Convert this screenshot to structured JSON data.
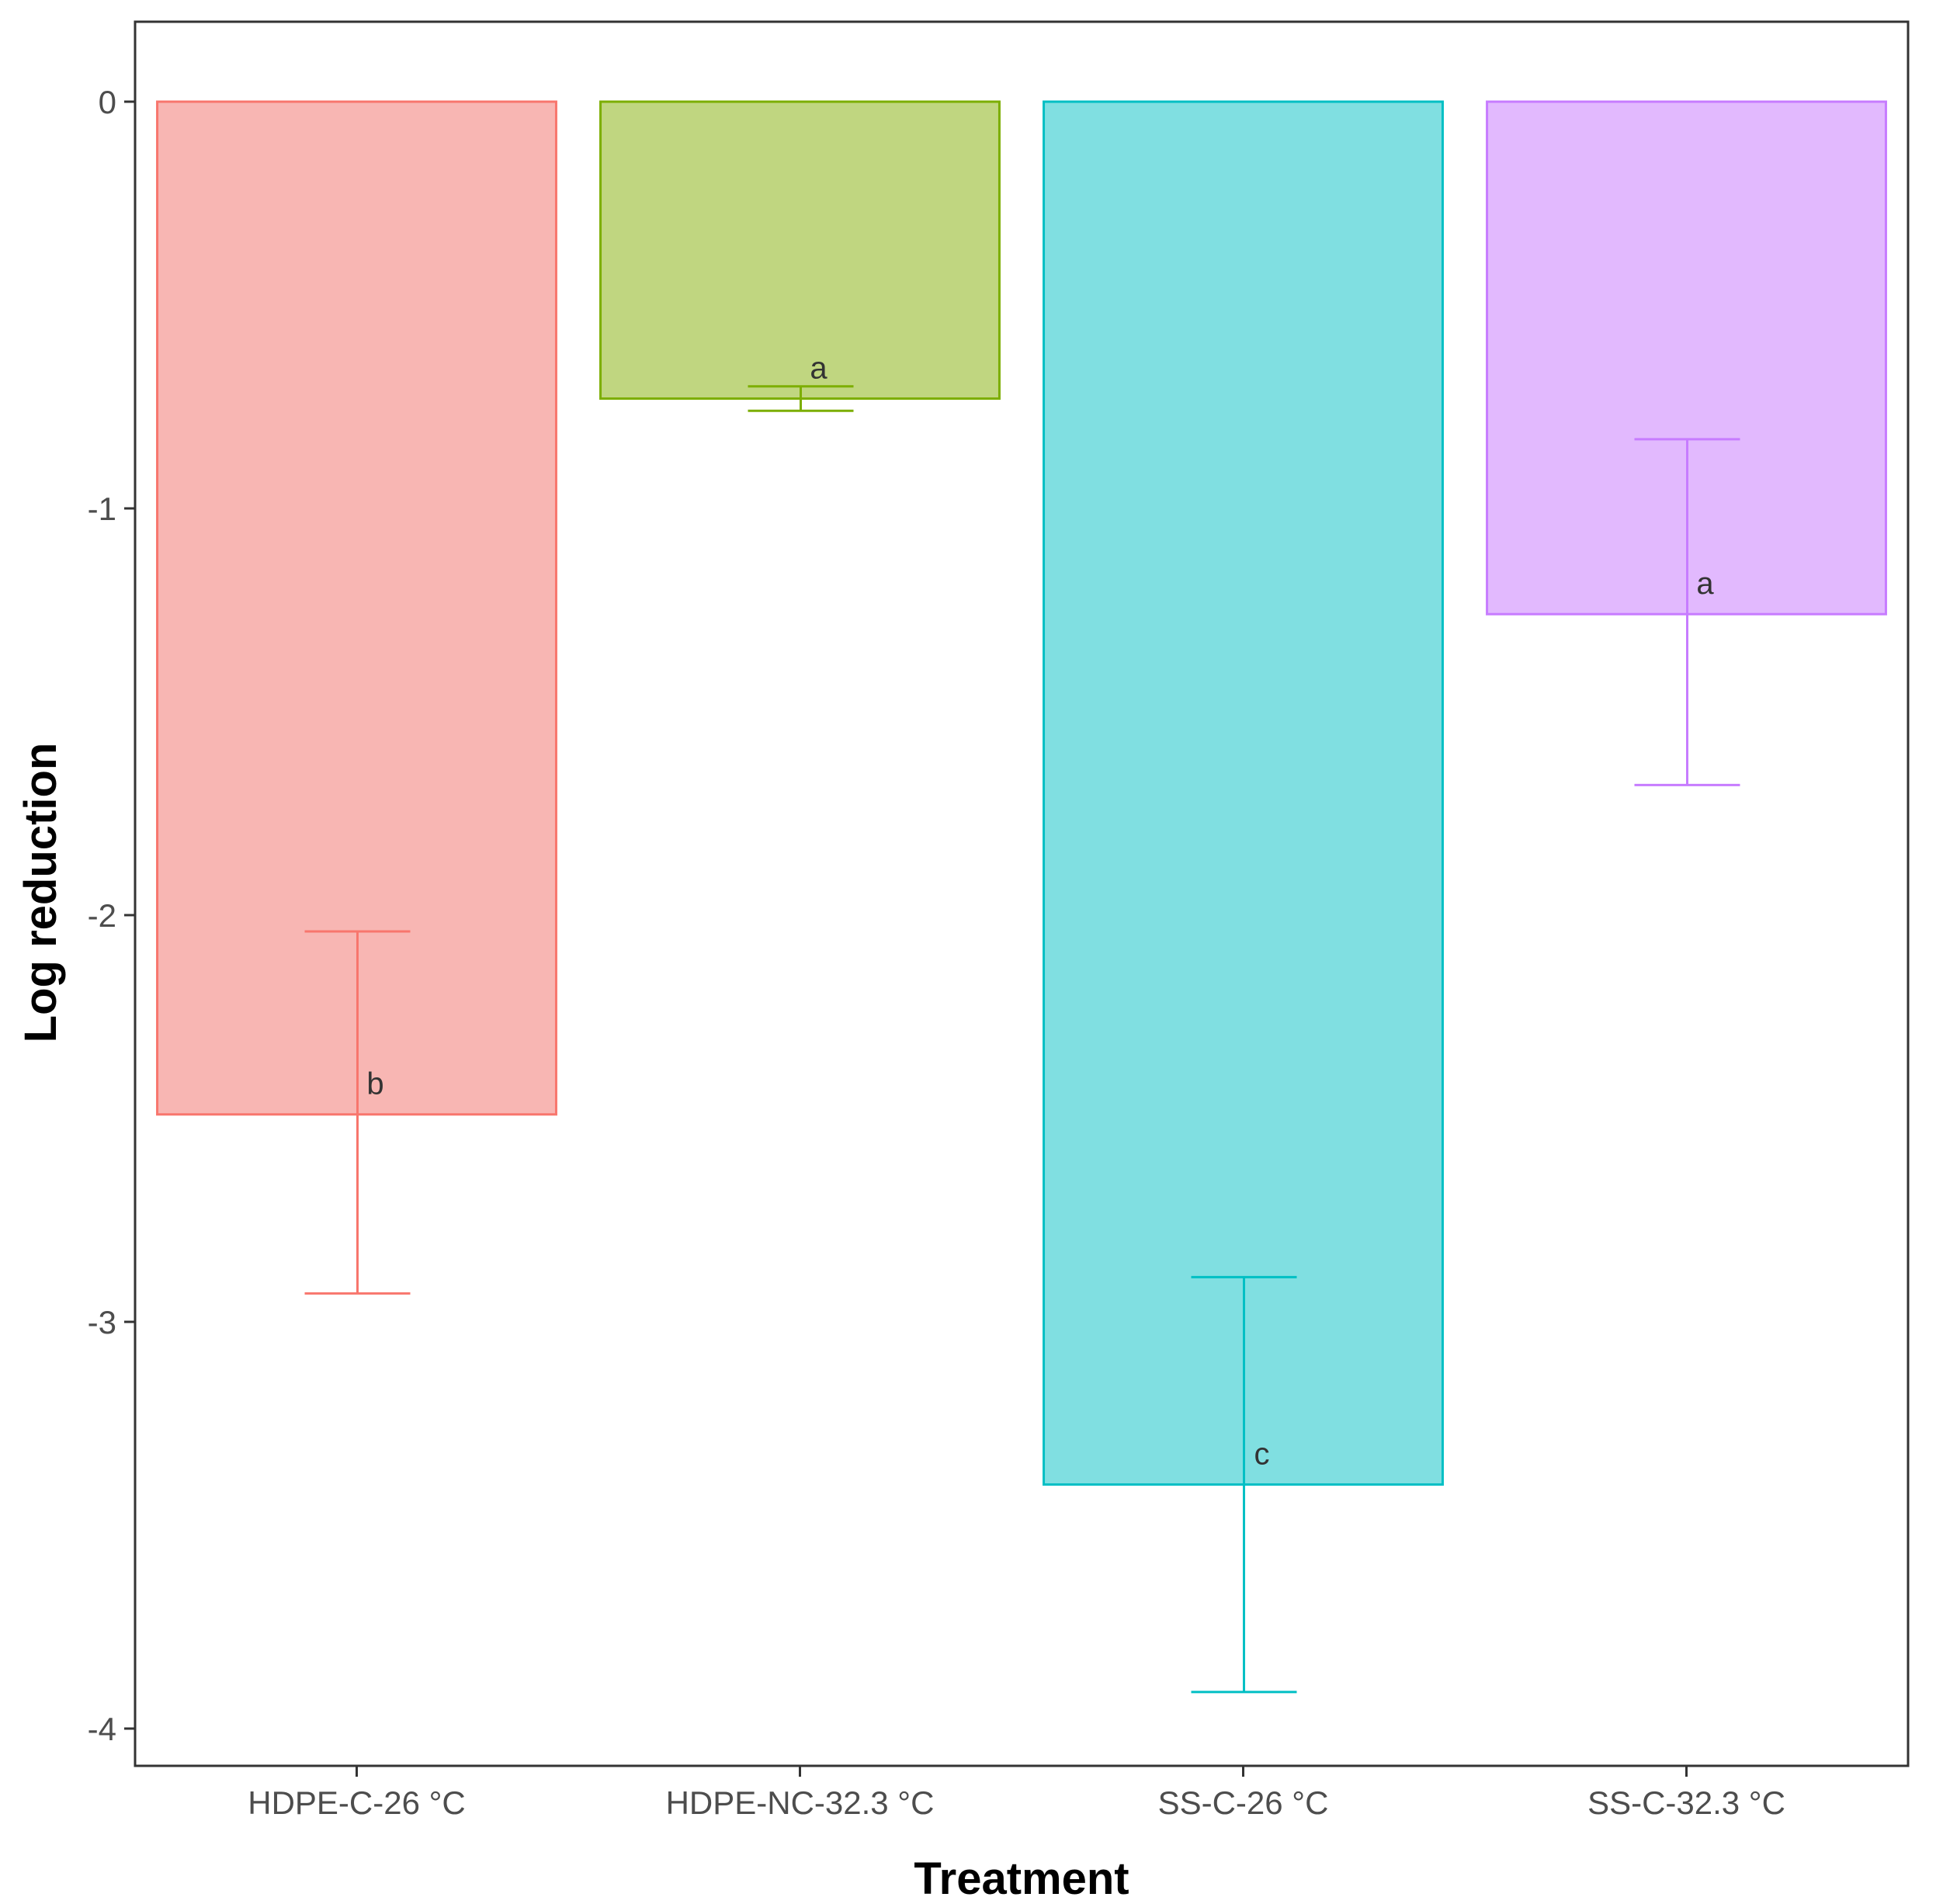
{
  "chart_data": {
    "type": "bar",
    "title": "",
    "xlabel": "Treatment",
    "ylabel": "Log reduction",
    "ylim": [
      -4.09,
      0.2
    ],
    "yticks": [
      0,
      -1,
      -2,
      -3,
      -4
    ],
    "ytick_labels": [
      "0",
      "-1",
      "-2",
      "-3",
      "-4"
    ],
    "grid": false,
    "legend": "none",
    "categories": [
      "HDPE-C-26 °C",
      "HDPE-NC-32.3 °C",
      "SS-C-26 °C",
      "SS-C-32.3 °C"
    ],
    "values": [
      -2.49,
      -0.73,
      -3.4,
      -1.26
    ],
    "error_low": [
      -2.93,
      -0.76,
      -3.91,
      -1.68
    ],
    "error_high": [
      -2.04,
      -0.7,
      -2.89,
      -0.83
    ],
    "significance_labels": [
      "b",
      "a",
      "c",
      "a"
    ],
    "label_y": [
      -2.44,
      -0.68,
      -3.35,
      -1.21
    ],
    "colors": {
      "fill": [
        "#f8b6b3",
        "#c0d680",
        "#80dfe1",
        "#e2b9fe"
      ],
      "stroke": [
        "#f8766d",
        "#7cae00",
        "#00bfc4",
        "#c77cff"
      ]
    }
  }
}
